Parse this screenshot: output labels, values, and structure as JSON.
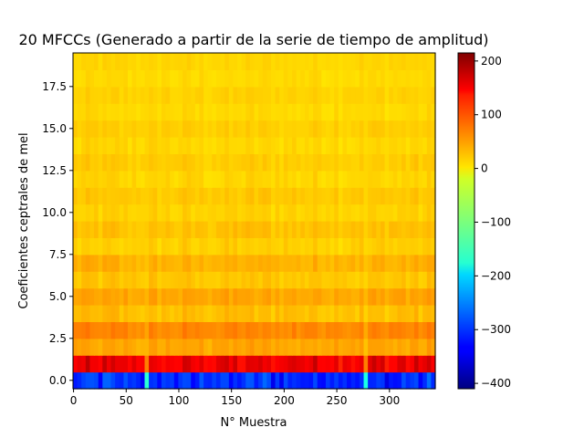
{
  "chart_data": {
    "type": "heatmap",
    "title": "20 MFCCs (Generado a partir de la serie de tiempo de amplitud)",
    "xlabel": "N° Muestra",
    "ylabel": "Coeficientes ceptrales de mel",
    "xlim": [
      -0.5,
      343.5
    ],
    "ylim": [
      -0.5,
      19.5
    ],
    "x_ticks": [
      0,
      50,
      100,
      150,
      200,
      250,
      300
    ],
    "x_tick_labels": [
      "0",
      "50",
      "100",
      "150",
      "200",
      "250",
      "300"
    ],
    "y_ticks": [
      0.0,
      2.5,
      5.0,
      7.5,
      10.0,
      12.5,
      15.0,
      17.5
    ],
    "y_tick_labels": [
      "0.0",
      "2.5",
      "5.0",
      "7.5",
      "10.0",
      "12.5",
      "15.0",
      "17.5"
    ],
    "colormap": "jet",
    "colorbar": {
      "min": -410,
      "max": 215,
      "ticks": [
        200,
        100,
        0,
        -100,
        -200,
        -300,
        -400
      ],
      "tick_labels": [
        "200",
        "100",
        "0",
        "−100",
        "−200",
        "−300",
        "−400"
      ]
    },
    "n_frames": 344,
    "coefficient_profile": [
      {
        "coef": 0,
        "value": -305
      },
      {
        "coef": 1,
        "value": 145
      },
      {
        "coef": 2,
        "value": 35
      },
      {
        "coef": 3,
        "value": 55
      },
      {
        "coef": 4,
        "value": 20
      },
      {
        "coef": 5,
        "value": 35
      },
      {
        "coef": 6,
        "value": 15
      },
      {
        "coef": 7,
        "value": 28
      },
      {
        "coef": 8,
        "value": 10
      },
      {
        "coef": 9,
        "value": 18
      },
      {
        "coef": 10,
        "value": 8
      },
      {
        "coef": 11,
        "value": 14
      },
      {
        "coef": 12,
        "value": 6
      },
      {
        "coef": 13,
        "value": 12
      },
      {
        "coef": 14,
        "value": 5
      },
      {
        "coef": 15,
        "value": 10
      },
      {
        "coef": 16,
        "value": 4
      },
      {
        "coef": 17,
        "value": 8
      },
      {
        "coef": 18,
        "value": 3
      },
      {
        "coef": 19,
        "value": 6
      }
    ],
    "events": [
      {
        "x_start": 69,
        "x_end": 72,
        "coef0_value": -150
      },
      {
        "x_start": 274,
        "x_end": 278,
        "coef0_value": -160
      }
    ]
  }
}
